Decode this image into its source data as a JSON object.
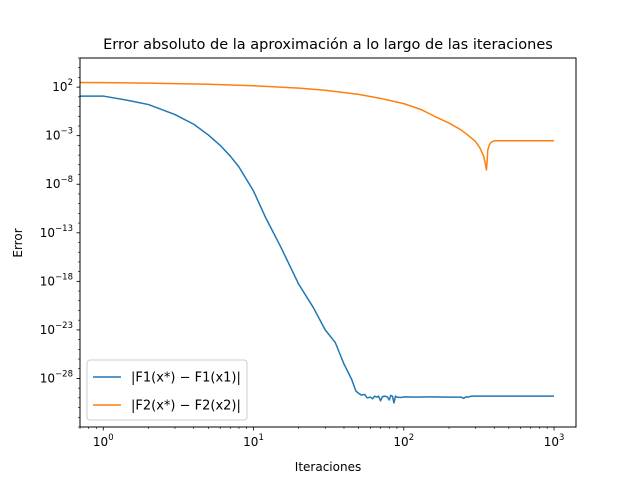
{
  "chart_data": {
    "type": "line",
    "title": "Error absoluto de la aproximación a lo largo de las iteraciones",
    "xlabel": "Iteraciones",
    "ylabel": "Error",
    "xscale": "log",
    "yscale": "log",
    "xlim": [
      0.7,
      1400
    ],
    "ylim": [
      1e-33,
      100000.0
    ],
    "x_ticks": [
      {
        "value": 1,
        "label_base": "10",
        "label_exp": "0"
      },
      {
        "value": 10,
        "label_base": "10",
        "label_exp": "1"
      },
      {
        "value": 100,
        "label_base": "10",
        "label_exp": "2"
      },
      {
        "value": 1000,
        "label_base": "10",
        "label_exp": "3"
      }
    ],
    "y_ticks": [
      {
        "value": 100.0,
        "label_base": "10",
        "label_exp": "2"
      },
      {
        "value": 0.001,
        "label_base": "10",
        "label_exp": "−3"
      },
      {
        "value": 1e-08,
        "label_base": "10",
        "label_exp": "−8"
      },
      {
        "value": 1e-13,
        "label_base": "10",
        "label_exp": "−13"
      },
      {
        "value": 1e-18,
        "label_base": "10",
        "label_exp": "−18"
      },
      {
        "value": 1e-23,
        "label_base": "10",
        "label_exp": "−23"
      },
      {
        "value": 1e-28,
        "label_base": "10",
        "label_exp": "−28"
      }
    ],
    "grid": false,
    "legend_position": "lower-left",
    "series": [
      {
        "name": "|F1(x*) − F1(x1)|",
        "color": "#1f77b4",
        "points": [
          [
            0.7,
            12
          ],
          [
            1,
            12
          ],
          [
            1.5,
            4
          ],
          [
            2,
            1.6
          ],
          [
            3,
            0.15
          ],
          [
            4,
            0.015
          ],
          [
            5,
            0.0012
          ],
          [
            6,
            0.0001
          ],
          [
            7,
            8e-06
          ],
          [
            8,
            6e-07
          ],
          [
            10,
            2e-09
          ],
          [
            12,
            4e-12
          ],
          [
            15,
            5e-15
          ],
          [
            20,
            5e-19
          ],
          [
            25,
            2e-21
          ],
          [
            30,
            1e-23
          ],
          [
            35,
            5e-25
          ],
          [
            40,
            3e-27
          ],
          [
            45,
            8e-29
          ],
          [
            48,
            5e-30
          ],
          [
            50,
            3e-30
          ],
          [
            52,
            2e-30
          ],
          [
            55,
            2.2e-30
          ],
          [
            57,
            1e-30
          ],
          [
            60,
            1.2e-30
          ],
          [
            62,
            8e-31
          ],
          [
            64,
            1.5e-30
          ],
          [
            66,
            1.2e-30
          ],
          [
            68,
            1.5e-30
          ],
          [
            70,
            5e-31
          ],
          [
            72,
            1.3e-30
          ],
          [
            75,
            1.5e-30
          ],
          [
            78,
            1.2e-30
          ],
          [
            80,
            6e-31
          ],
          [
            82,
            1.8e-30
          ],
          [
            84,
            1.5e-30
          ],
          [
            86,
            3e-31
          ],
          [
            88,
            1.5e-30
          ],
          [
            90,
            1.2e-30
          ],
          [
            95,
            1.1e-30
          ],
          [
            100,
            1.25e-30
          ],
          [
            120,
            1.2e-30
          ],
          [
            150,
            1.25e-30
          ],
          [
            200,
            1.2e-30
          ],
          [
            240,
            1.2e-30
          ],
          [
            250,
            9e-31
          ],
          [
            260,
            1.3e-30
          ],
          [
            270,
            1.2e-30
          ],
          [
            280,
            1.5e-30
          ],
          [
            300,
            1.5e-30
          ],
          [
            500,
            1.5e-30
          ],
          [
            1000,
            1.5e-30
          ]
        ]
      },
      {
        "name": "|F2(x*) − F2(x2)|",
        "color": "#ff7f0e",
        "points": [
          [
            0.7,
            300
          ],
          [
            1,
            290
          ],
          [
            2,
            260
          ],
          [
            5,
            200
          ],
          [
            10,
            140
          ],
          [
            20,
            80
          ],
          [
            30,
            48
          ],
          [
            50,
            18
          ],
          [
            70,
            7
          ],
          [
            100,
            2
          ],
          [
            130,
            0.5
          ],
          [
            160,
            0.1
          ],
          [
            200,
            0.02
          ],
          [
            240,
            0.004
          ],
          [
            270,
            0.001
          ],
          [
            300,
            0.00025
          ],
          [
            320,
            6e-05
          ],
          [
            340,
            8e-06
          ],
          [
            350,
            1e-06
          ],
          [
            355,
            3e-07
          ],
          [
            358,
            1.5e-06
          ],
          [
            362,
            3e-05
          ],
          [
            370,
            0.0001
          ],
          [
            380,
            0.0002
          ],
          [
            400,
            0.0003
          ],
          [
            500,
            0.0003
          ],
          [
            700,
            0.0003
          ],
          [
            1000,
            0.0003
          ]
        ]
      }
    ]
  }
}
